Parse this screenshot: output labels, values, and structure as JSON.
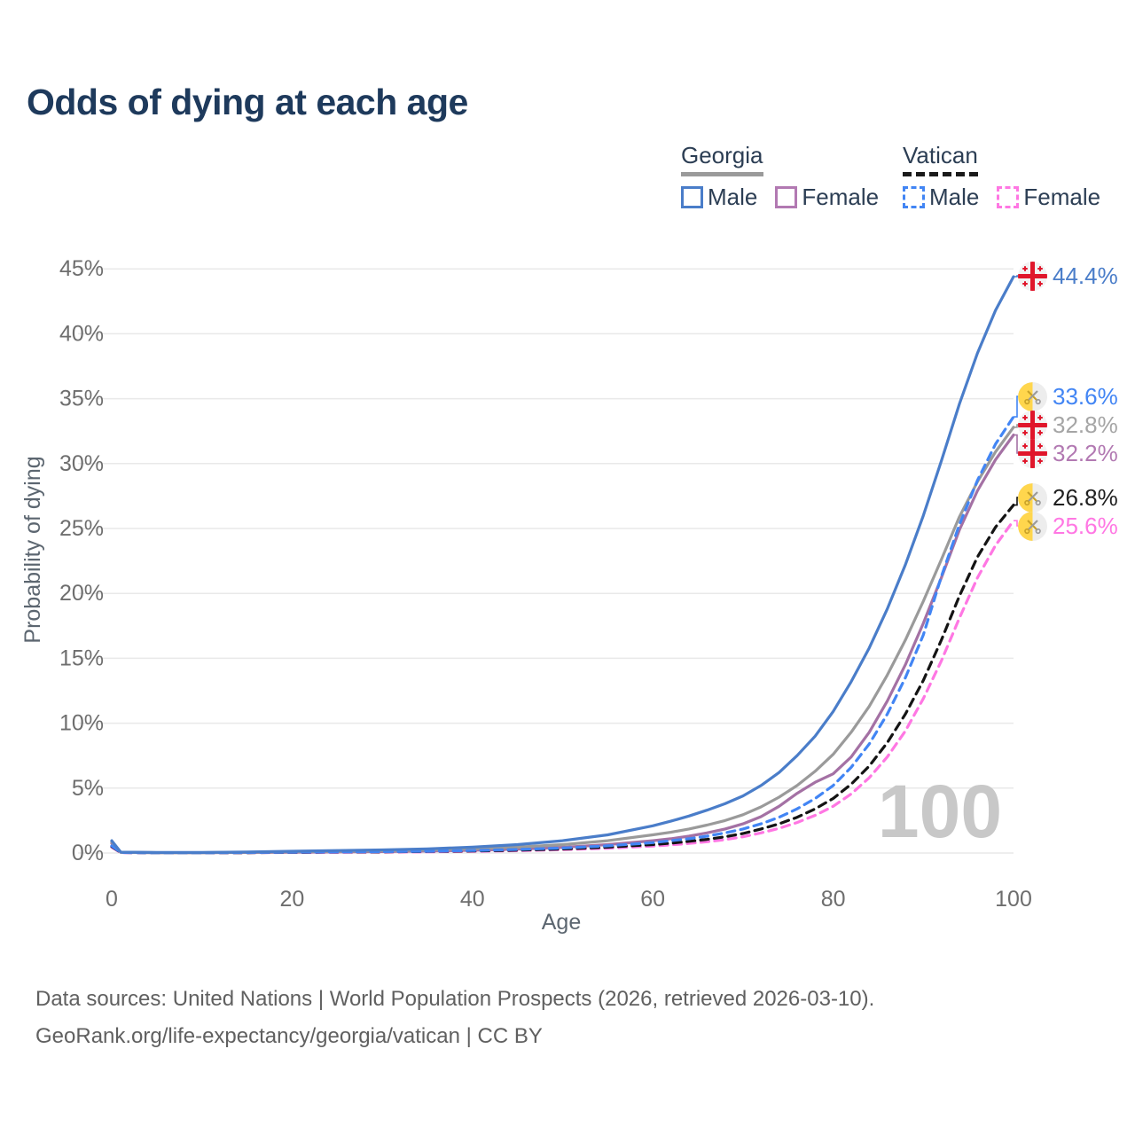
{
  "title": "Odds of dying at each age",
  "legend": {
    "groups": [
      {
        "label": "Georgia",
        "line_style": "solid",
        "line_color": "#9a9a9a",
        "items": [
          {
            "label": "Male",
            "color": "#4a7dc9",
            "box_style": "solid"
          },
          {
            "label": "Female",
            "color": "#b279b2",
            "box_style": "solid"
          }
        ]
      },
      {
        "label": "Vatican",
        "line_style": "dashed",
        "line_color": "#1a1a1a",
        "items": [
          {
            "label": "Male",
            "color": "#4285f4",
            "box_style": "dashed"
          },
          {
            "label": "Female",
            "color": "#ff77e3",
            "box_style": "dashed"
          }
        ]
      }
    ]
  },
  "chart_data": {
    "type": "line",
    "title": "Odds of dying at each age",
    "xlabel": "Age",
    "ylabel": "Probability of dying",
    "xlim": [
      0,
      100
    ],
    "ylim": [
      0,
      45
    ],
    "x_ticks": [
      0,
      20,
      40,
      60,
      80,
      100
    ],
    "y_ticks": [
      "0%",
      "5%",
      "10%",
      "15%",
      "20%",
      "25%",
      "30%",
      "35%",
      "40%",
      "45%"
    ],
    "grid": true,
    "legend_position": "top-right",
    "watermark": "100",
    "series": [
      {
        "name": "Georgia Male",
        "group": "Georgia",
        "sex": "Male",
        "color": "#4a7dc9",
        "label_color": "#4a7dc9",
        "dash": "solid",
        "flag": "georgia",
        "end_label": "44.4%",
        "end_value": 44.4,
        "points": [
          [
            0,
            0.95
          ],
          [
            1,
            0.07
          ],
          [
            5,
            0.04
          ],
          [
            10,
            0.04
          ],
          [
            15,
            0.08
          ],
          [
            20,
            0.14
          ],
          [
            25,
            0.19
          ],
          [
            30,
            0.24
          ],
          [
            35,
            0.32
          ],
          [
            40,
            0.45
          ],
          [
            45,
            0.65
          ],
          [
            50,
            0.95
          ],
          [
            55,
            1.4
          ],
          [
            60,
            2.1
          ],
          [
            62,
            2.45
          ],
          [
            64,
            2.85
          ],
          [
            66,
            3.3
          ],
          [
            68,
            3.8
          ],
          [
            70,
            4.4
          ],
          [
            72,
            5.2
          ],
          [
            74,
            6.2
          ],
          [
            76,
            7.5
          ],
          [
            78,
            9.0
          ],
          [
            80,
            10.9
          ],
          [
            82,
            13.2
          ],
          [
            84,
            15.8
          ],
          [
            86,
            18.8
          ],
          [
            88,
            22.2
          ],
          [
            90,
            26.0
          ],
          [
            92,
            30.2
          ],
          [
            94,
            34.6
          ],
          [
            96,
            38.5
          ],
          [
            98,
            41.8
          ],
          [
            100,
            44.4
          ]
        ]
      },
      {
        "name": "Vatican Male",
        "group": "Vatican",
        "sex": "Male",
        "color": "#4285f4",
        "label_color": "#4285f4",
        "dash": "dashed",
        "flag": "vatican",
        "end_label": "33.6%",
        "end_value": 33.6,
        "points": [
          [
            0,
            0.55
          ],
          [
            1,
            0.04
          ],
          [
            5,
            0.02
          ],
          [
            10,
            0.02
          ],
          [
            15,
            0.04
          ],
          [
            20,
            0.07
          ],
          [
            25,
            0.09
          ],
          [
            30,
            0.11
          ],
          [
            35,
            0.14
          ],
          [
            40,
            0.19
          ],
          [
            45,
            0.27
          ],
          [
            50,
            0.38
          ],
          [
            55,
            0.55
          ],
          [
            60,
            0.8
          ],
          [
            62,
            0.95
          ],
          [
            64,
            1.1
          ],
          [
            66,
            1.3
          ],
          [
            68,
            1.55
          ],
          [
            70,
            1.85
          ],
          [
            72,
            2.25
          ],
          [
            74,
            2.75
          ],
          [
            76,
            3.4
          ],
          [
            78,
            4.2
          ],
          [
            80,
            5.2
          ],
          [
            82,
            6.6
          ],
          [
            84,
            8.4
          ],
          [
            86,
            10.7
          ],
          [
            88,
            13.5
          ],
          [
            90,
            16.8
          ],
          [
            92,
            21.3
          ],
          [
            94,
            25.3
          ],
          [
            96,
            28.7
          ],
          [
            98,
            31.5
          ],
          [
            100,
            33.6
          ]
        ]
      },
      {
        "name": "Georgia",
        "group": "Georgia",
        "sex": "All",
        "color": "#9a9a9a",
        "label_color": "#a5a5a5",
        "dash": "solid",
        "flag": "georgia",
        "end_label": "32.8%",
        "end_value": 32.8,
        "points": [
          [
            0,
            0.85
          ],
          [
            1,
            0.06
          ],
          [
            5,
            0.03
          ],
          [
            10,
            0.03
          ],
          [
            15,
            0.06
          ],
          [
            20,
            0.1
          ],
          [
            25,
            0.13
          ],
          [
            30,
            0.17
          ],
          [
            35,
            0.23
          ],
          [
            40,
            0.32
          ],
          [
            45,
            0.45
          ],
          [
            50,
            0.65
          ],
          [
            55,
            0.95
          ],
          [
            60,
            1.4
          ],
          [
            62,
            1.6
          ],
          [
            64,
            1.85
          ],
          [
            66,
            2.15
          ],
          [
            68,
            2.5
          ],
          [
            70,
            2.95
          ],
          [
            72,
            3.55
          ],
          [
            74,
            4.3
          ],
          [
            76,
            5.2
          ],
          [
            78,
            6.3
          ],
          [
            80,
            7.6
          ],
          [
            82,
            9.3
          ],
          [
            84,
            11.3
          ],
          [
            86,
            13.7
          ],
          [
            88,
            16.4
          ],
          [
            90,
            19.4
          ],
          [
            92,
            22.6
          ],
          [
            94,
            25.9
          ],
          [
            96,
            28.6
          ],
          [
            98,
            30.9
          ],
          [
            100,
            32.8
          ]
        ]
      },
      {
        "name": "Georgia Female",
        "group": "Georgia",
        "sex": "Female",
        "color": "#a471a4",
        "label_color": "#b279b2",
        "dash": "solid",
        "flag": "georgia",
        "end_label": "32.2%",
        "end_value": 32.2,
        "points": [
          [
            0,
            0.75
          ],
          [
            1,
            0.05
          ],
          [
            5,
            0.03
          ],
          [
            10,
            0.03
          ],
          [
            15,
            0.04
          ],
          [
            20,
            0.06
          ],
          [
            25,
            0.08
          ],
          [
            30,
            0.11
          ],
          [
            35,
            0.15
          ],
          [
            40,
            0.21
          ],
          [
            45,
            0.3
          ],
          [
            50,
            0.44
          ],
          [
            55,
            0.65
          ],
          [
            60,
            0.95
          ],
          [
            62,
            1.1
          ],
          [
            64,
            1.3
          ],
          [
            66,
            1.55
          ],
          [
            68,
            1.85
          ],
          [
            70,
            2.25
          ],
          [
            72,
            2.8
          ],
          [
            74,
            3.6
          ],
          [
            76,
            4.6
          ],
          [
            78,
            5.45
          ],
          [
            80,
            6.1
          ],
          [
            82,
            7.4
          ],
          [
            84,
            9.3
          ],
          [
            86,
            11.7
          ],
          [
            88,
            14.5
          ],
          [
            90,
            17.7
          ],
          [
            92,
            21.2
          ],
          [
            94,
            24.9
          ],
          [
            96,
            27.9
          ],
          [
            98,
            30.3
          ],
          [
            100,
            32.2
          ]
        ]
      },
      {
        "name": "Vatican",
        "group": "Vatican",
        "sex": "All",
        "color": "#141414",
        "label_color": "#1f1f1f",
        "dash": "dashed",
        "flag": "vatican",
        "end_label": "26.8%",
        "end_value": 26.8,
        "points": [
          [
            0,
            0.5
          ],
          [
            1,
            0.04
          ],
          [
            5,
            0.02
          ],
          [
            10,
            0.02
          ],
          [
            15,
            0.03
          ],
          [
            20,
            0.05
          ],
          [
            25,
            0.07
          ],
          [
            30,
            0.09
          ],
          [
            35,
            0.12
          ],
          [
            40,
            0.16
          ],
          [
            45,
            0.22
          ],
          [
            50,
            0.31
          ],
          [
            55,
            0.45
          ],
          [
            60,
            0.65
          ],
          [
            62,
            0.76
          ],
          [
            64,
            0.9
          ],
          [
            66,
            1.05
          ],
          [
            68,
            1.25
          ],
          [
            70,
            1.5
          ],
          [
            72,
            1.85
          ],
          [
            74,
            2.25
          ],
          [
            76,
            2.75
          ],
          [
            78,
            3.4
          ],
          [
            80,
            4.2
          ],
          [
            82,
            5.3
          ],
          [
            84,
            6.7
          ],
          [
            86,
            8.5
          ],
          [
            88,
            10.7
          ],
          [
            90,
            13.3
          ],
          [
            92,
            16.4
          ],
          [
            94,
            19.8
          ],
          [
            96,
            22.8
          ],
          [
            98,
            25.1
          ],
          [
            100,
            26.8
          ]
        ]
      },
      {
        "name": "Vatican Female",
        "group": "Vatican",
        "sex": "Female",
        "color": "#ff77e3",
        "label_color": "#ff77e3",
        "dash": "dashed",
        "flag": "vatican",
        "end_label": "25.6%",
        "end_value": 25.6,
        "points": [
          [
            0,
            0.45
          ],
          [
            1,
            0.03
          ],
          [
            5,
            0.02
          ],
          [
            10,
            0.02
          ],
          [
            15,
            0.03
          ],
          [
            20,
            0.04
          ],
          [
            25,
            0.05
          ],
          [
            30,
            0.07
          ],
          [
            35,
            0.09
          ],
          [
            40,
            0.13
          ],
          [
            45,
            0.18
          ],
          [
            50,
            0.26
          ],
          [
            55,
            0.37
          ],
          [
            60,
            0.54
          ],
          [
            62,
            0.63
          ],
          [
            64,
            0.74
          ],
          [
            66,
            0.87
          ],
          [
            68,
            1.03
          ],
          [
            70,
            1.25
          ],
          [
            72,
            1.55
          ],
          [
            74,
            1.9
          ],
          [
            76,
            2.35
          ],
          [
            78,
            2.9
          ],
          [
            80,
            3.6
          ],
          [
            82,
            4.55
          ],
          [
            84,
            5.8
          ],
          [
            86,
            7.4
          ],
          [
            88,
            9.4
          ],
          [
            90,
            11.9
          ],
          [
            92,
            14.8
          ],
          [
            94,
            18.1
          ],
          [
            96,
            21.2
          ],
          [
            98,
            23.7
          ],
          [
            100,
            25.6
          ]
        ]
      }
    ]
  },
  "footer": {
    "line1": "Data sources: United Nations | World Population Prospects (2026, retrieved 2026-03-10).",
    "line2": "GeoRank.org/life-expectancy/georgia/vatican | CC BY"
  },
  "colors": {
    "title": "#1e3a5c",
    "legend_text": "#2c3e54",
    "tick_text": "#6e6e6e",
    "axis_label_text": "#5c6670",
    "gridline": "#e9e9e9",
    "watermark": "#c8c8c8",
    "footer_text": "#606060",
    "georgia_flag_red": "#e0162b",
    "vatican_flag_yellow": "#ffd64d"
  }
}
